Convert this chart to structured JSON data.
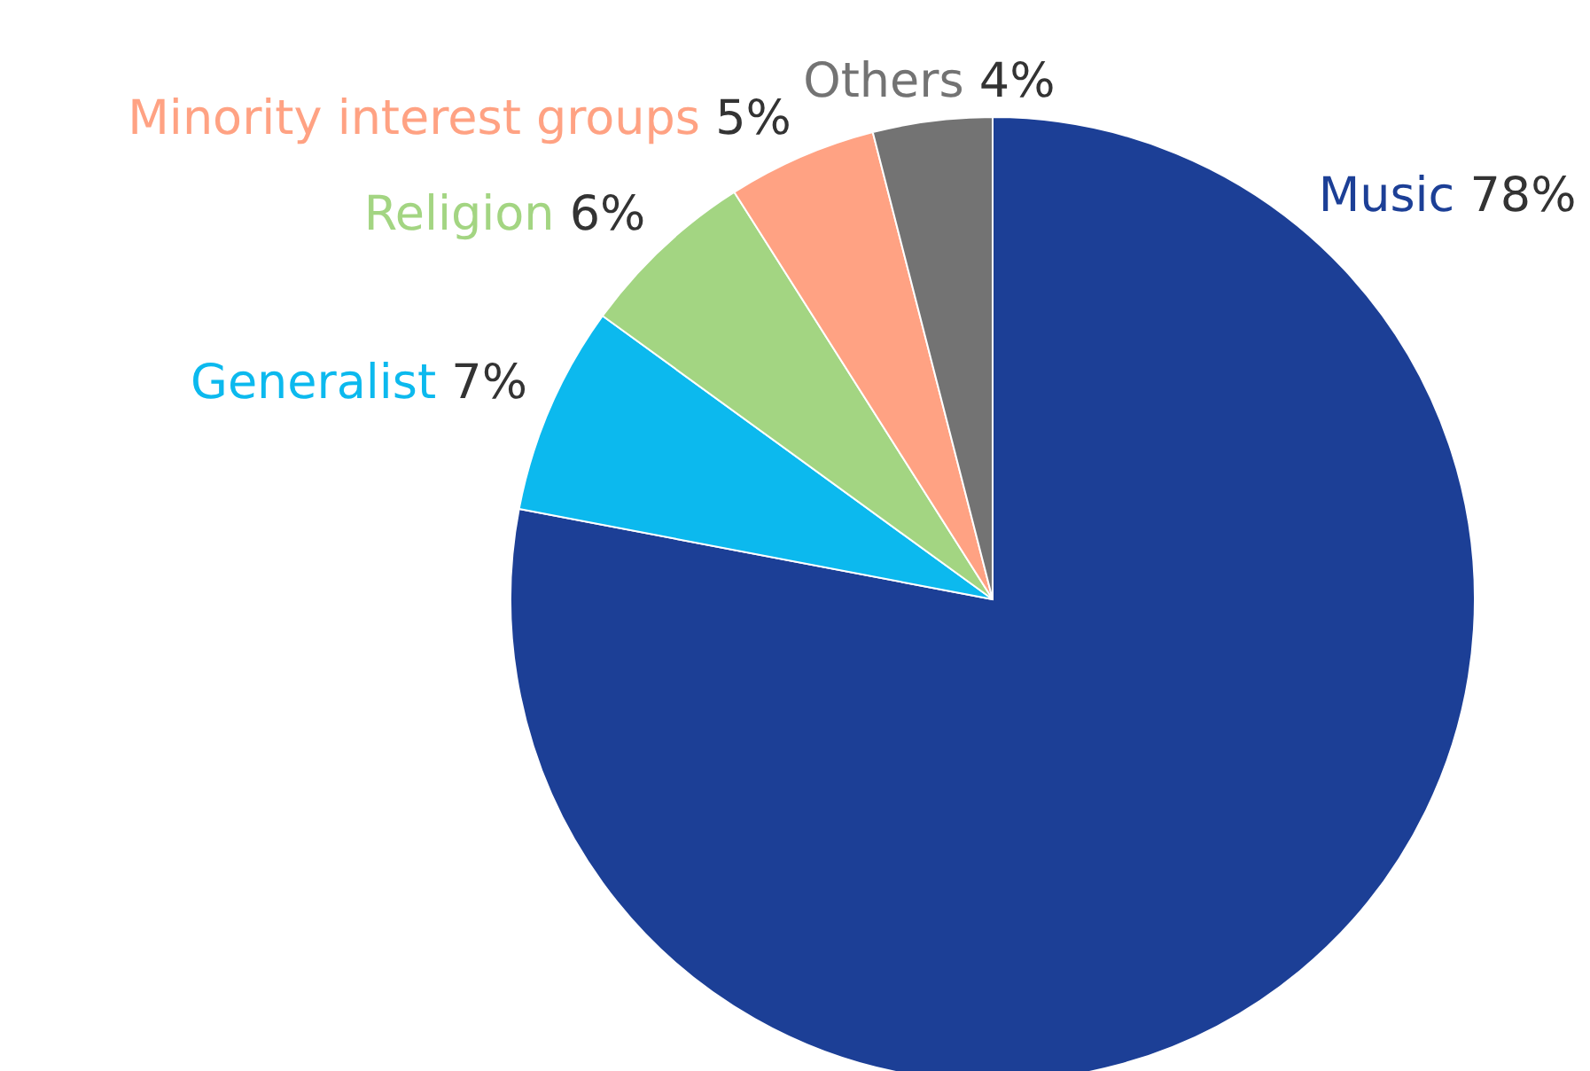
{
  "chart_data": {
    "type": "pie",
    "categories": [
      "Music",
      "Generalist",
      "Religion",
      "Minority interest groups",
      "Others"
    ],
    "values": [
      78,
      7,
      6,
      5,
      4
    ],
    "colors": [
      "#1c3f96",
      "#0cb9ee",
      "#a3d582",
      "#ffa283",
      "#737373"
    ],
    "value_labels": [
      "78%",
      "7%",
      "6%",
      "5%",
      "4%"
    ],
    "legend": false
  }
}
